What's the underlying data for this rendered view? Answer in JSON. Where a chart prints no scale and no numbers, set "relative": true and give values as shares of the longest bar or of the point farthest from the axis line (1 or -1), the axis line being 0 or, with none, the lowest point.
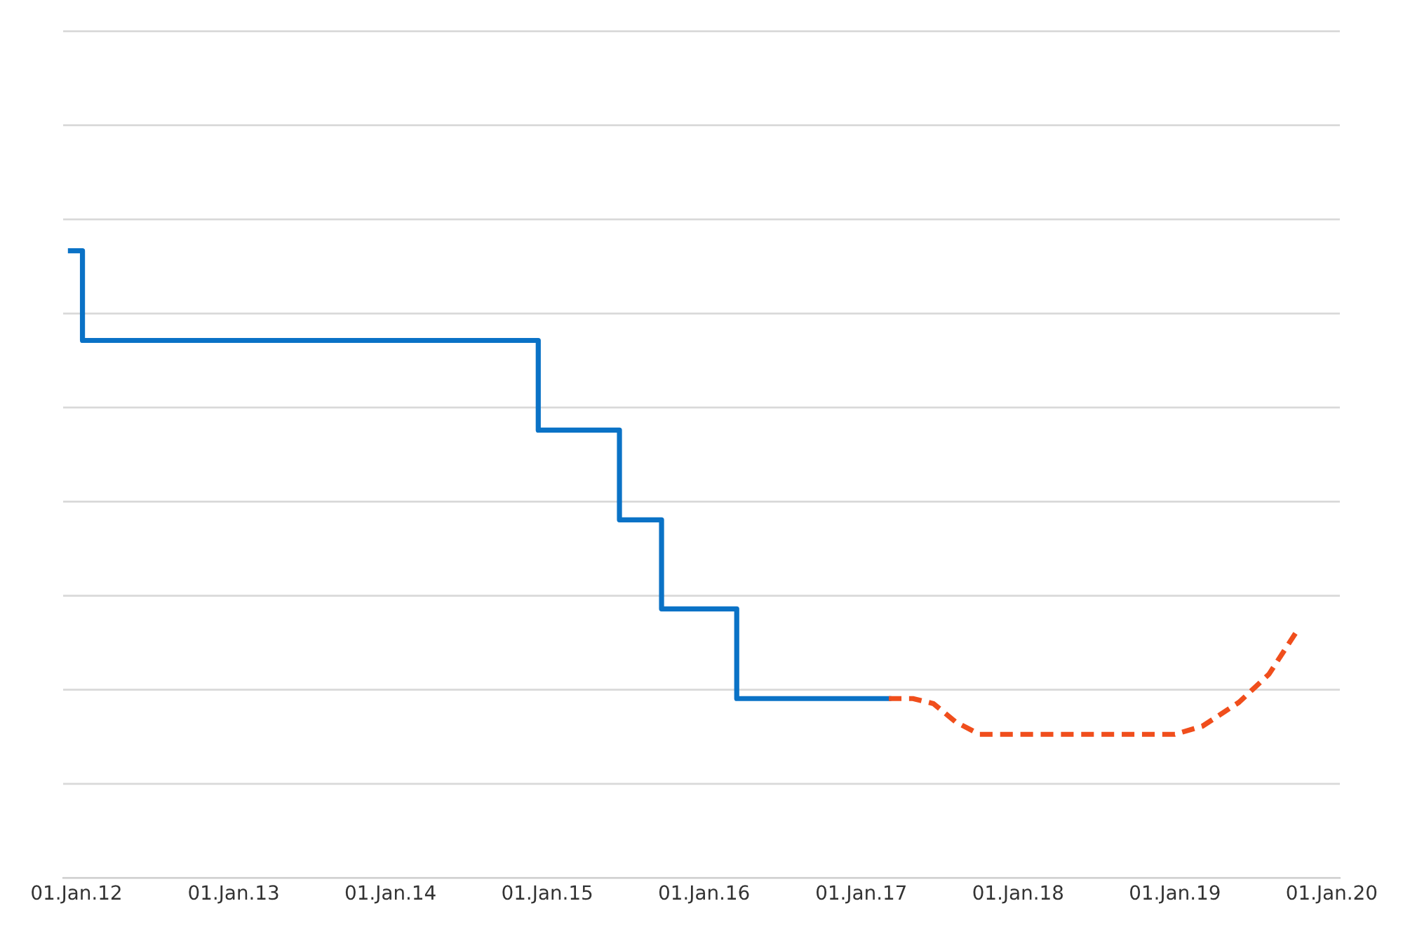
{
  "chart_data": {
    "type": "line",
    "relative": true,
    "xlim": [
      "2011-12-01",
      "2020-01-20"
    ],
    "xticks": [
      {
        "value": "2012-01-01",
        "label": "01.Jan.12"
      },
      {
        "value": "2013-01-01",
        "label": "01.Jan.13"
      },
      {
        "value": "2014-01-01",
        "label": "01.Jan.14"
      },
      {
        "value": "2015-01-01",
        "label": "01.Jan.15"
      },
      {
        "value": "2016-01-01",
        "label": "01.Jan.16"
      },
      {
        "value": "2017-01-01",
        "label": "01.Jan.17"
      },
      {
        "value": "2018-01-01",
        "label": "01.Jan.18"
      },
      {
        "value": "2019-01-01",
        "label": "01.Jan.19"
      },
      {
        "value": "2020-01-01",
        "label": "01.Jan.20"
      }
    ],
    "series": [
      {
        "type": "step",
        "color": "#0a72c6",
        "line_style": "solid",
        "x": [
          "2011-12-18",
          "2012-01-15",
          "2014-12-11",
          "2015-06-18",
          "2015-09-24",
          "2016-03-17",
          "2017-03-06"
        ],
        "values": [
          1,
          0.857,
          0.714,
          0.571,
          0.429,
          0.286,
          0.286
        ]
      },
      {
        "color": "#f04e1c",
        "line_style": "dashed",
        "x": [
          "2017-03-06",
          "2017-05-01",
          "2017-06-18",
          "2017-08-08",
          "2017-10-03",
          "2018-04-03",
          "2019-01-01",
          "2019-03-06",
          "2019-05-30",
          "2019-08-08",
          "2019-10-17"
        ],
        "values": [
          0.286,
          0.286,
          0.278,
          0.249,
          0.229,
          0.229,
          0.229,
          0.242,
          0.28,
          0.325,
          0.399
        ]
      }
    ],
    "grid": "y",
    "tick_labels": "x",
    "marker": "none"
  }
}
